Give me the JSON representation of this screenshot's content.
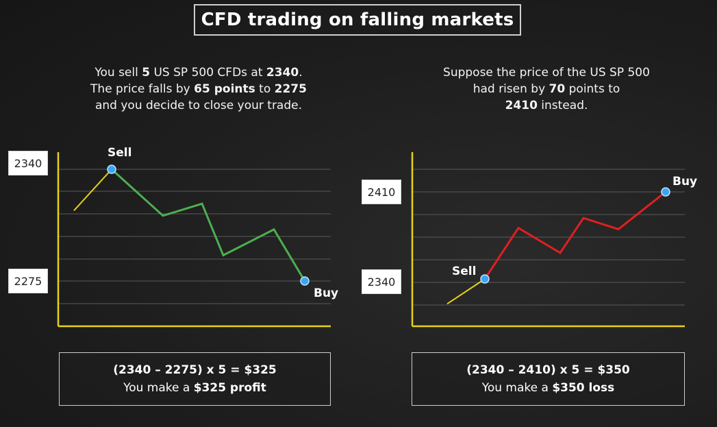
{
  "title": "CFD trading on falling markets",
  "left": {
    "desc": {
      "l1a": "You sell ",
      "l1b": "5",
      "l1c": " US SP 500 CFDs at ",
      "l1d": "2340",
      "l1e": ".",
      "l2a": "The price falls by ",
      "l2b": "65 points",
      "l2c": " to ",
      "l2d": "2275",
      "l3": "and you decide to close your trade."
    },
    "label_top": "2340",
    "label_bottom": "2275",
    "sell_label": "Sell",
    "buy_label": "Buy",
    "result": {
      "formula": "(2340 – 2275) x 5 = $325",
      "t1": "You make a ",
      "t2": "$325 profit"
    }
  },
  "right": {
    "desc": {
      "l1": "Suppose the price of the US SP 500",
      "l2a": "had risen by ",
      "l2b": "70",
      "l2c": " points to",
      "l3a": "2410",
      "l3b": " instead."
    },
    "label_top": "2410",
    "label_bottom": "2340",
    "sell_label": "Sell",
    "buy_label": "Buy",
    "result": {
      "formula": "(2340 – 2410) x 5 = $350",
      "t1": "You make a ",
      "t2": "$350 loss"
    }
  },
  "chart_data": [
    {
      "type": "line",
      "series": [
        {
          "values": [
            2316,
            2340
          ],
          "color": "#e8d21a"
        },
        {
          "values": [
            2340,
            2313,
            2320,
            2290,
            2305,
            2275
          ],
          "color": "#4caf50"
        }
      ],
      "sell_value": 2340,
      "buy_value": 2275,
      "axis_color": "#e8d21a"
    },
    {
      "type": "line",
      "series": [
        {
          "values": [
            2320,
            2340
          ],
          "color": "#e8d21a"
        },
        {
          "values": [
            2340,
            2381,
            2361,
            2389,
            2380,
            2410
          ],
          "color": "#e02020"
        }
      ],
      "sell_value": 2340,
      "buy_value": 2410,
      "axis_color": "#e8d21a"
    }
  ]
}
